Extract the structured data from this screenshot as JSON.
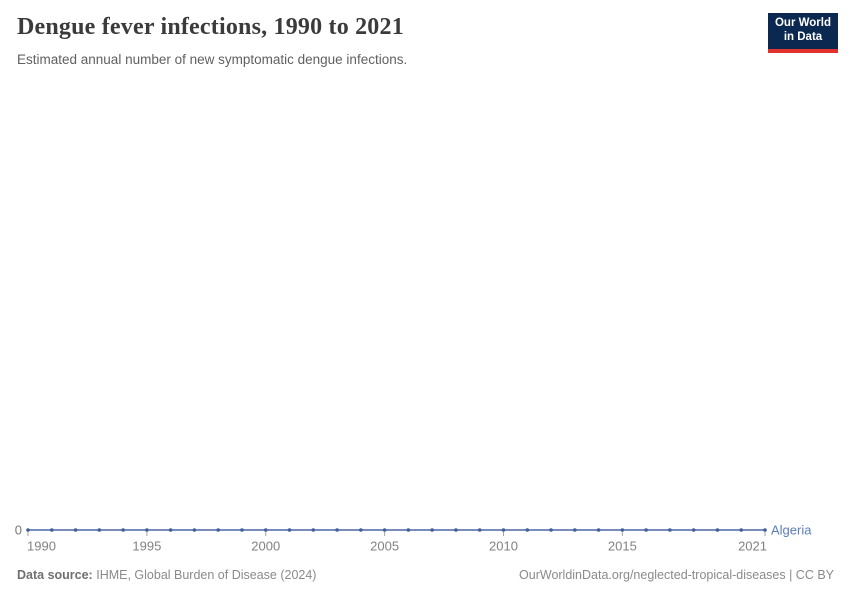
{
  "header": {
    "title": "Dengue fever infections, 1990 to 2021",
    "subtitle": "Estimated annual number of new symptomatic dengue infections.",
    "logo": {
      "line1": "Our World",
      "line2": "in Data",
      "bg_color": "#0a2850",
      "accent_color": "#e1322d"
    }
  },
  "chart_data": {
    "type": "line",
    "title": "Dengue fever infections, 1990 to 2021",
    "xlabel": "",
    "ylabel": "",
    "x": [
      1990,
      1991,
      1992,
      1993,
      1994,
      1995,
      1996,
      1997,
      1998,
      1999,
      2000,
      2001,
      2002,
      2003,
      2004,
      2005,
      2006,
      2007,
      2008,
      2009,
      2010,
      2011,
      2012,
      2013,
      2014,
      2015,
      2016,
      2017,
      2018,
      2019,
      2020,
      2021
    ],
    "series": [
      {
        "name": "Algeria",
        "values": [
          0,
          0,
          0,
          0,
          0,
          0,
          0,
          0,
          0,
          0,
          0,
          0,
          0,
          0,
          0,
          0,
          0,
          0,
          0,
          0,
          0,
          0,
          0,
          0,
          0,
          0,
          0,
          0,
          0,
          0,
          0,
          0
        ],
        "line_color": "#647db4",
        "dot_color": "#41609b",
        "label_color": "#5a7db9"
      }
    ],
    "x_ticks": [
      1990,
      1995,
      2000,
      2005,
      2010,
      2015,
      2021
    ],
    "y_ticks": [
      "0"
    ],
    "ylim": [
      0,
      0
    ],
    "grid": false,
    "legend_position": "end-of-line",
    "tick_color": "#a3a3a3",
    "tick_label_color": "#828282"
  },
  "footer": {
    "source_label": "Data source:",
    "source_value": "IHME, Global Burden of Disease (2024)",
    "credit": "OurWorldinData.org/neglected-tropical-diseases | CC BY"
  }
}
